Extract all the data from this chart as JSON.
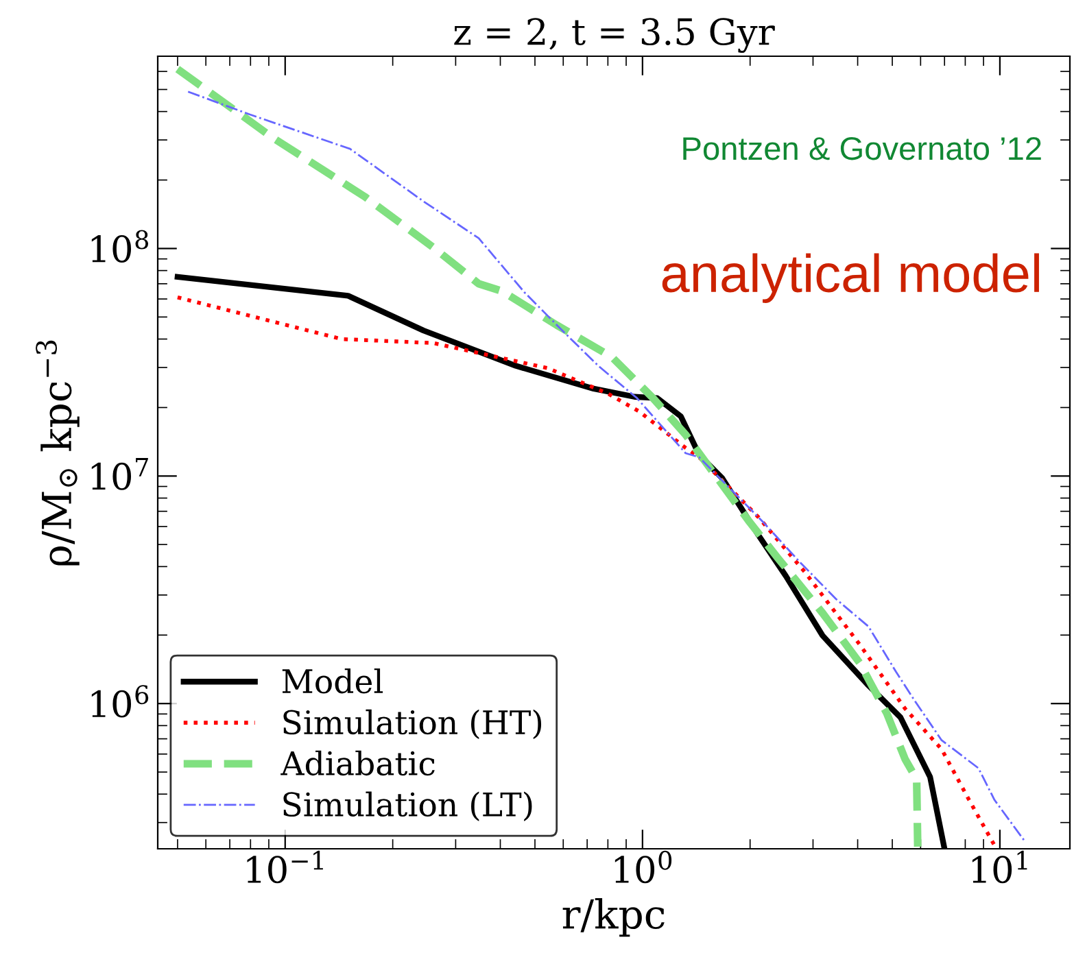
{
  "chart_data": {
    "type": "line",
    "title": "z = 2, t = 3.5 Gyr",
    "xlabel": "r/kpc",
    "ylabel": "ρ/M$_{⊙}$ kpc$^{−3}$",
    "log": "xy",
    "xlim": [
      0.044,
      15.7
    ],
    "ylim": [
      230000,
      700000000
    ],
    "xticks": [
      {
        "value": 0.1,
        "label": "10$^{−1}$"
      },
      {
        "value": 1,
        "label": "10$^{0}$"
      },
      {
        "value": 10,
        "label": "10$^{1}$"
      }
    ],
    "yticks": [
      {
        "value": 1000000,
        "label": "10$^{6}$"
      },
      {
        "value": 10000000,
        "label": "10$^{7}$"
      },
      {
        "value": 100000000,
        "label": "10$^{8}$"
      }
    ],
    "grid": false,
    "legend": "bottom left",
    "annotations": [
      "Pontzen & Governato ’12",
      "analytical model"
    ],
    "series": [
      {
        "name": "Model",
        "color": "#000000",
        "line_style": "solid",
        "x": [
          0.05,
          0.15,
          0.244,
          0.442,
          0.73,
          0.95,
          1.1,
          1.28,
          1.44,
          1.67,
          2.11,
          2.52,
          3.19,
          4.29,
          5.27,
          6.38,
          6.98
        ],
        "values": [
          75000000,
          62000000,
          43600000,
          30500000,
          24200000,
          22300000,
          22000000,
          18300000,
          12400000,
          9800000,
          5500000,
          3630000,
          1990000,
          1200000,
          870000,
          475000,
          235000
        ]
      },
      {
        "name": "Simulation (HT)",
        "color": "#ff0000",
        "line_style": "dotted",
        "x": [
          0.05,
          0.144,
          0.26,
          0.543,
          0.797,
          0.98,
          1.32,
          1.44,
          2.11,
          2.84,
          4.05,
          5.43,
          6.87,
          8.2,
          9.66
        ],
        "values": [
          61000000,
          40000000,
          38400000,
          29800000,
          23100000,
          19200000,
          13300000,
          12100000,
          6600000,
          3800000,
          1820000,
          950000,
          630000,
          377000,
          238000
        ]
      },
      {
        "name": "Adiabatic",
        "color": "#80e080",
        "line_style": "dashed",
        "x": [
          0.05,
          0.092,
          0.167,
          0.26,
          0.348,
          0.404,
          0.576,
          0.82,
          1.07,
          1.32,
          1.44,
          1.99,
          2.38,
          3.19,
          4.05,
          4.82,
          5.43,
          5.85,
          5.89
        ],
        "values": [
          615000000,
          308000000,
          169000000,
          101000000,
          70000000,
          65000000,
          46000000,
          33400000,
          22000000,
          15200000,
          12600000,
          6300000,
          4400000,
          2500000,
          1510000,
          910000,
          570000,
          464000,
          235000
        ]
      },
      {
        "name": "Simulation (LT)",
        "color": "#6666ff",
        "line_style": "dashdot",
        "x": [
          0.0535,
          0.0797,
          0.152,
          0.244,
          0.348,
          0.468,
          0.593,
          0.752,
          0.965,
          1.32,
          1.44,
          2.17,
          2.75,
          3.48,
          4.29,
          5.12,
          5.75,
          6.87,
          8.71,
          9.66,
          11.7
        ],
        "values": [
          489000000,
          388000000,
          274000000,
          161000000,
          111000000,
          64000000,
          44000000,
          30500000,
          22000000,
          12600000,
          12100000,
          6300000,
          4200000,
          2880000,
          2180000,
          1380000,
          1040000,
          690000,
          520000,
          377000,
          250000
        ]
      }
    ]
  }
}
